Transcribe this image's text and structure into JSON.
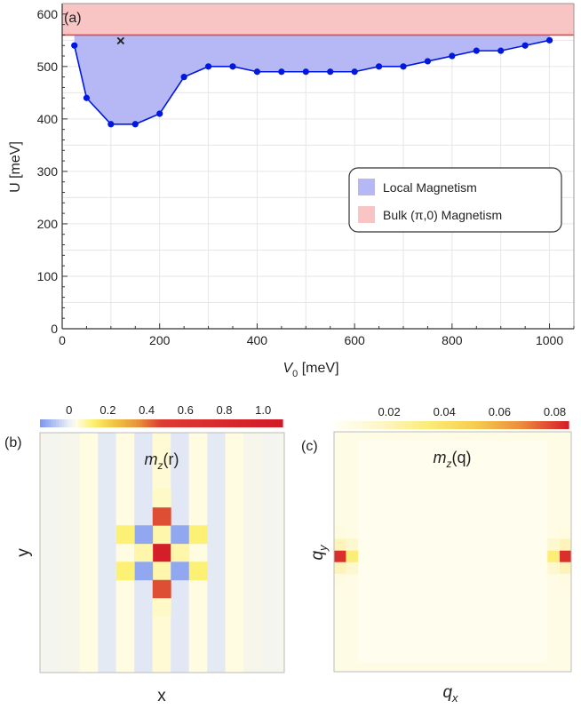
{
  "chart_data": [
    {
      "panel_label": "(a)",
      "type": "line",
      "xlabel": "V",
      "xlabel_sub": "0",
      "xlabel_unit": " [meV]",
      "ylabel": "U [meV]",
      "xlim": [
        0,
        1050
      ],
      "ylim": [
        0,
        620
      ],
      "xticks": [
        0,
        200,
        400,
        600,
        800,
        1000
      ],
      "yticks": [
        0,
        100,
        200,
        300,
        400,
        500,
        600
      ],
      "grid": true,
      "legend_position": "right",
      "series": [
        {
          "name": "Local Magnetism",
          "color": "#0018e0",
          "fill_color": "#b5b8f5",
          "x": [
            25,
            50,
            100,
            150,
            200,
            250,
            300,
            350,
            400,
            450,
            500,
            550,
            600,
            650,
            700,
            750,
            800,
            850,
            900,
            950,
            1000
          ],
          "y": [
            540,
            440,
            390,
            390,
            410,
            480,
            500,
            500,
            490,
            490,
            490,
            490,
            490,
            500,
            500,
            510,
            520,
            530,
            530,
            540,
            550
          ]
        },
        {
          "name": "Bulk (π,0) Magnetism",
          "color": "#e34848",
          "fill_color": "#f8c4c4",
          "y_boundary": 560
        }
      ],
      "marker": {
        "symbol": "×",
        "x": 120,
        "y": 550
      }
    },
    {
      "panel_label": "(b)",
      "type": "heatmap",
      "title": "m",
      "title_sub": "z",
      "title_arg": "(r)",
      "xlabel": "x",
      "ylabel": "y",
      "colorbar_ticks": [
        "0",
        "0.2",
        "0.4",
        "0.6",
        "0.8",
        "1.0"
      ],
      "colorbar_range": [
        -0.15,
        1.1
      ],
      "cells": [
        {
          "x": 0,
          "y": 0,
          "value": 1.0
        },
        {
          "x": 0,
          "y": -1,
          "value": 0.08
        },
        {
          "x": 0,
          "y": 1,
          "value": 0.08
        },
        {
          "x": -1,
          "y": 0,
          "value": 0.08
        },
        {
          "x": 1,
          "y": 0,
          "value": 0.08
        },
        {
          "x": 0,
          "y": -2,
          "value": 0.45
        },
        {
          "x": 0,
          "y": 2,
          "value": 0.45
        },
        {
          "x": -1,
          "y": -1,
          "value": -0.12
        },
        {
          "x": 1,
          "y": -1,
          "value": -0.12
        },
        {
          "x": -1,
          "y": 1,
          "value": -0.12
        },
        {
          "x": 1,
          "y": 1,
          "value": -0.12
        },
        {
          "x": -2,
          "y": -1,
          "value": 0.12
        },
        {
          "x": 2,
          "y": -1,
          "value": 0.12
        },
        {
          "x": -2,
          "y": 1,
          "value": 0.12
        },
        {
          "x": 2,
          "y": 1,
          "value": 0.12
        },
        {
          "x": 0,
          "y": -3,
          "value": 0.06
        },
        {
          "x": 0,
          "y": 3,
          "value": 0.06
        }
      ],
      "stripes": [
        {
          "x": -6,
          "value": 0.015
        },
        {
          "x": -5,
          "value": 0.02
        },
        {
          "x": -4,
          "value": 0.04
        },
        {
          "x": -3,
          "value": -0.01
        },
        {
          "x": -2,
          "value": 0.04
        },
        {
          "x": -1,
          "value": -0.015
        },
        {
          "x": 0,
          "value": 0.05
        },
        {
          "x": 1,
          "value": -0.015
        },
        {
          "x": 2,
          "value": 0.04
        },
        {
          "x": 3,
          "value": -0.01
        },
        {
          "x": 4,
          "value": 0.04
        },
        {
          "x": 5,
          "value": 0.02
        },
        {
          "x": 6,
          "value": 0.015
        }
      ]
    },
    {
      "panel_label": "(c)",
      "type": "heatmap",
      "title": "m",
      "title_sub": "z",
      "title_arg": "(q)",
      "xlabel": "q",
      "xlabel_sub": "x",
      "ylabel": "q",
      "ylabel_sub": "y",
      "colorbar_ticks": [
        "0.02",
        "0.04",
        "0.06",
        "0.08"
      ],
      "colorbar_range": [
        0,
        0.085
      ],
      "cells": [
        {
          "x": 0,
          "y": 0,
          "value": 0.082
        },
        {
          "x": 1,
          "y": 0,
          "value": 0.034
        },
        {
          "x": 0,
          "y": -1,
          "value": 0.02
        },
        {
          "x": 0,
          "y": 1,
          "value": 0.02
        },
        {
          "x": 1,
          "y": -1,
          "value": 0.014
        },
        {
          "x": 1,
          "y": 1,
          "value": 0.014
        },
        {
          "x": 0,
          "y": -2,
          "value": 0.008
        },
        {
          "x": 0,
          "y": 2,
          "value": 0.008
        },
        {
          "x": 19,
          "y": 0,
          "value": 0.082
        },
        {
          "x": 18,
          "y": 0,
          "value": 0.034
        },
        {
          "x": 19,
          "y": -1,
          "value": 0.02
        },
        {
          "x": 19,
          "y": 1,
          "value": 0.02
        },
        {
          "x": 18,
          "y": -1,
          "value": 0.014
        },
        {
          "x": 18,
          "y": 1,
          "value": 0.014
        },
        {
          "x": 19,
          "y": -2,
          "value": 0.008
        },
        {
          "x": 19,
          "y": 2,
          "value": 0.008
        }
      ]
    }
  ]
}
